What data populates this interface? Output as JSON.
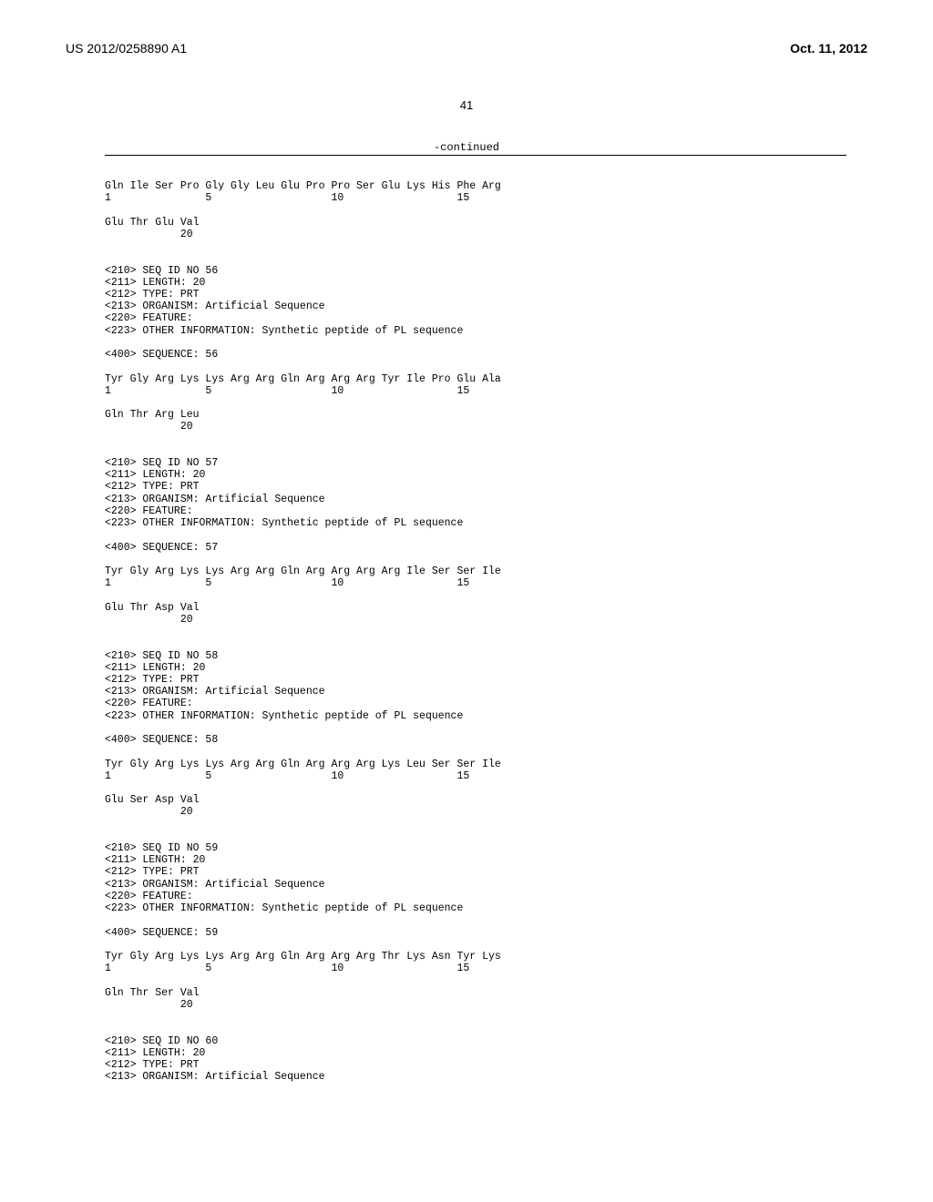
{
  "header": {
    "publication_number": "US 2012/0258890 A1",
    "publication_date": "Oct. 11, 2012"
  },
  "page_number": "41",
  "continued_label": "-continued",
  "typography": {
    "header_font": "Arial",
    "body_font": "Courier New",
    "header_fontsize": 14,
    "body_fontsize": 11.5,
    "text_color": "#000000",
    "background_color": "#ffffff"
  },
  "sequence_listing": {
    "preamble_sequence": {
      "line1": "Gln Ile Ser Pro Gly Gly Leu Glu Pro Pro Ser Glu Lys His Phe Arg",
      "positions1": "1               5                   10                  15",
      "line2": "Glu Thr Glu Val",
      "positions2": "            20"
    },
    "entries": [
      {
        "seq_id": "56",
        "length": "20",
        "type": "PRT",
        "organism": "Artificial Sequence",
        "feature": "",
        "other_info": "Synthetic peptide of PL sequence",
        "sequence_number": "56",
        "line1": "Tyr Gly Arg Lys Lys Arg Arg Gln Arg Arg Arg Tyr Ile Pro Glu Ala",
        "positions1": "1               5                   10                  15",
        "line2": "Gln Thr Arg Leu",
        "positions2": "            20"
      },
      {
        "seq_id": "57",
        "length": "20",
        "type": "PRT",
        "organism": "Artificial Sequence",
        "feature": "",
        "other_info": "Synthetic peptide of PL sequence",
        "sequence_number": "57",
        "line1": "Tyr Gly Arg Lys Lys Arg Arg Gln Arg Arg Arg Arg Ile Ser Ser Ile",
        "positions1": "1               5                   10                  15",
        "line2": "Glu Thr Asp Val",
        "positions2": "            20"
      },
      {
        "seq_id": "58",
        "length": "20",
        "type": "PRT",
        "organism": "Artificial Sequence",
        "feature": "",
        "other_info": "Synthetic peptide of PL sequence",
        "sequence_number": "58",
        "line1": "Tyr Gly Arg Lys Lys Arg Arg Gln Arg Arg Arg Lys Leu Ser Ser Ile",
        "positions1": "1               5                   10                  15",
        "line2": "Glu Ser Asp Val",
        "positions2": "            20"
      },
      {
        "seq_id": "59",
        "length": "20",
        "type": "PRT",
        "organism": "Artificial Sequence",
        "feature": "",
        "other_info": "Synthetic peptide of PL sequence",
        "sequence_number": "59",
        "line1": "Tyr Gly Arg Lys Lys Arg Arg Gln Arg Arg Arg Thr Lys Asn Tyr Lys",
        "positions1": "1               5                   10                  15",
        "line2": "Gln Thr Ser Val",
        "positions2": "            20"
      }
    ],
    "trailing_entry": {
      "seq_id": "60",
      "length": "20",
      "type": "PRT",
      "organism": "Artificial Sequence"
    }
  }
}
